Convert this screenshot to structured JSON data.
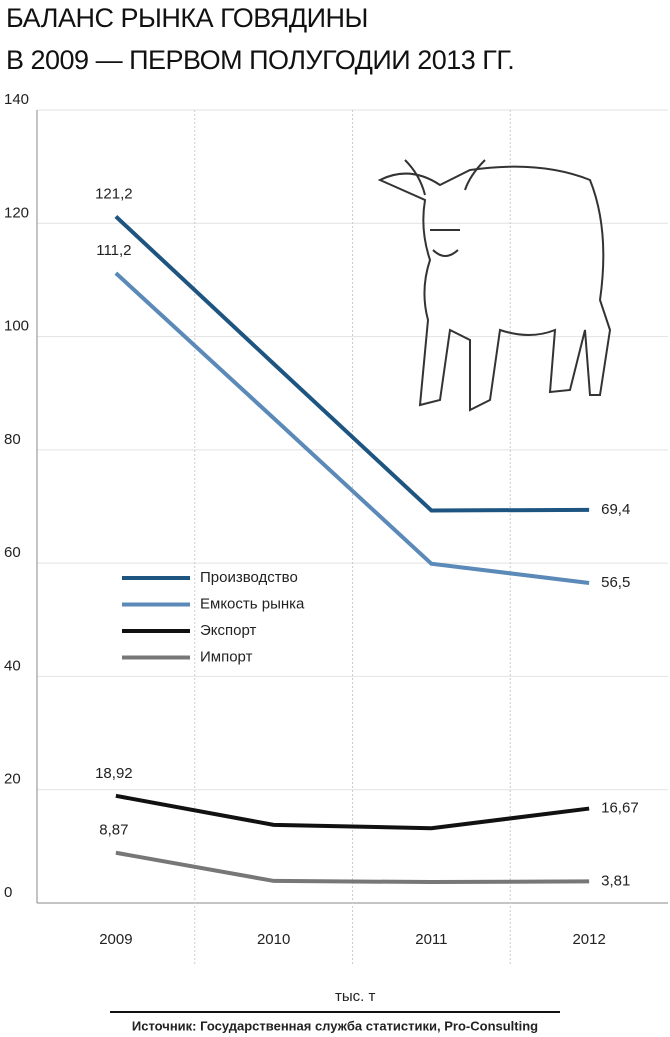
{
  "chart_data": {
    "type": "line",
    "title": [
      "БАЛАНС РЫНКА ГОВЯДИНЫ",
      "В 2009 — ПЕРВОМ ПОЛУГОДИИ 2013 ГГ."
    ],
    "unit": "тыс. т",
    "source": "Источник: Государственная служба статистики, Pro-Consulting",
    "categories": [
      "2009",
      "2010",
      "2011",
      "2012"
    ],
    "ylim": [
      0,
      140
    ],
    "yticks": [
      0,
      20,
      40,
      60,
      80,
      100,
      120,
      140
    ],
    "grid": true,
    "series": [
      {
        "name": "Производство",
        "color": "#1d5480",
        "values": [
          121.2,
          95.2,
          69.3,
          69.4
        ],
        "value_labels": [
          "121,2",
          null,
          null,
          "69,4"
        ]
      },
      {
        "name": "Емкость рынка",
        "color": "#5b8ab8",
        "values": [
          111.2,
          85.6,
          59.9,
          56.5
        ],
        "value_labels": [
          "111,2",
          null,
          null,
          "56,5"
        ]
      },
      {
        "name": "Экспорт",
        "color": "#111111",
        "values": [
          18.92,
          13.8,
          13.2,
          16.67
        ],
        "value_labels": [
          "18,92",
          null,
          null,
          "16,67"
        ]
      },
      {
        "name": "Импорт",
        "color": "#777777",
        "values": [
          8.87,
          3.9,
          3.7,
          3.81
        ],
        "value_labels": [
          "8,87",
          null,
          null,
          "3,81"
        ]
      }
    ]
  }
}
